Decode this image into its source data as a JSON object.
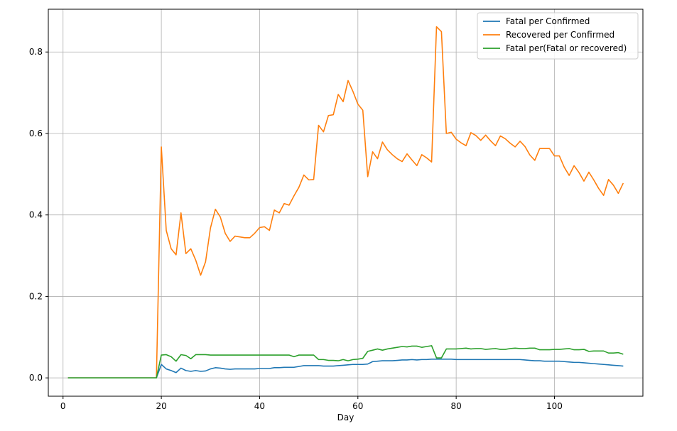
{
  "chart_data": {
    "type": "line",
    "title": "",
    "xlabel": "Day",
    "ylabel": "",
    "xlim": [
      -3,
      118
    ],
    "ylim": [
      -0.045,
      0.905
    ],
    "xticks": [
      0,
      20,
      40,
      60,
      80,
      100
    ],
    "yticks": [
      0.0,
      0.2,
      0.4,
      0.6,
      0.8
    ],
    "xtick_labels": [
      "0",
      "20",
      "40",
      "60",
      "80",
      "100"
    ],
    "ytick_labels": [
      "0.0",
      "0.2",
      "0.4",
      "0.6",
      "0.8"
    ],
    "grid": true,
    "legend_position": "top-right",
    "x": [
      1,
      2,
      3,
      4,
      5,
      6,
      7,
      8,
      9,
      10,
      11,
      12,
      13,
      14,
      15,
      16,
      17,
      18,
      19,
      20,
      21,
      22,
      23,
      24,
      25,
      26,
      27,
      28,
      29,
      30,
      31,
      32,
      33,
      34,
      35,
      36,
      37,
      38,
      39,
      40,
      41,
      42,
      43,
      44,
      45,
      46,
      47,
      48,
      49,
      50,
      51,
      52,
      53,
      54,
      55,
      56,
      57,
      58,
      59,
      60,
      61,
      62,
      63,
      64,
      65,
      66,
      67,
      68,
      69,
      70,
      71,
      72,
      73,
      74,
      75,
      76,
      77,
      78,
      79,
      80,
      81,
      82,
      83,
      84,
      85,
      86,
      87,
      88,
      89,
      90,
      91,
      92,
      93,
      94,
      95,
      96,
      97,
      98,
      99,
      100,
      101,
      102,
      103,
      104,
      105,
      106,
      107,
      108,
      109,
      110,
      111,
      112,
      113,
      114
    ],
    "series": [
      {
        "name": "Fatal per Confirmed",
        "color": "#1f77b4",
        "values": [
          0,
          0,
          0,
          0,
          0,
          0,
          0,
          0,
          0,
          0,
          0,
          0,
          0,
          0,
          0,
          0,
          0,
          0,
          0,
          0.033,
          0.022,
          0.018,
          0.013,
          0.024,
          0.018,
          0.016,
          0.018,
          0.016,
          0.017,
          0.022,
          0.025,
          0.024,
          0.022,
          0.021,
          0.022,
          0.022,
          0.022,
          0.022,
          0.022,
          0.023,
          0.023,
          0.023,
          0.025,
          0.025,
          0.026,
          0.026,
          0.026,
          0.028,
          0.03,
          0.03,
          0.03,
          0.03,
          0.029,
          0.029,
          0.029,
          0.03,
          0.031,
          0.032,
          0.033,
          0.033,
          0.033,
          0.034,
          0.04,
          0.041,
          0.042,
          0.042,
          0.042,
          0.043,
          0.044,
          0.044,
          0.045,
          0.044,
          0.045,
          0.045,
          0.046,
          0.046,
          0.046,
          0.046,
          0.046,
          0.045,
          0.045,
          0.045,
          0.045,
          0.045,
          0.045,
          0.045,
          0.045,
          0.045,
          0.045,
          0.045,
          0.045,
          0.045,
          0.045,
          0.044,
          0.043,
          0.042,
          0.042,
          0.041,
          0.041,
          0.041,
          0.041,
          0.04,
          0.039,
          0.038,
          0.038,
          0.037,
          0.036,
          0.035,
          0.034,
          0.033,
          0.032,
          0.031,
          0.03,
          0.029
        ]
      },
      {
        "name": "Recovered per Confirmed",
        "color": "#ff7f0e",
        "values": [
          0,
          0,
          0,
          0,
          0,
          0,
          0,
          0,
          0,
          0,
          0,
          0,
          0,
          0,
          0,
          0,
          0,
          0,
          0,
          0.567,
          0.362,
          0.317,
          0.302,
          0.405,
          0.305,
          0.317,
          0.289,
          0.252,
          0.285,
          0.368,
          0.414,
          0.395,
          0.355,
          0.335,
          0.348,
          0.346,
          0.344,
          0.344,
          0.355,
          0.369,
          0.371,
          0.362,
          0.412,
          0.405,
          0.428,
          0.424,
          0.447,
          0.468,
          0.498,
          0.486,
          0.487,
          0.62,
          0.604,
          0.644,
          0.646,
          0.696,
          0.678,
          0.73,
          0.703,
          0.672,
          0.657,
          0.494,
          0.555,
          0.538,
          0.579,
          0.56,
          0.548,
          0.538,
          0.531,
          0.55,
          0.535,
          0.521,
          0.548,
          0.54,
          0.53,
          0.862,
          0.85,
          0.6,
          0.603,
          0.586,
          0.577,
          0.57,
          0.602,
          0.595,
          0.583,
          0.596,
          0.582,
          0.57,
          0.594,
          0.587,
          0.576,
          0.567,
          0.581,
          0.568,
          0.547,
          0.534,
          0.563,
          0.563,
          0.563,
          0.545,
          0.545,
          0.517,
          0.497,
          0.521,
          0.504,
          0.483,
          0.505,
          0.486,
          0.465,
          0.448,
          0.487,
          0.473,
          0.453,
          0.478
        ]
      },
      {
        "name": "Fatal per(Fatal or recovered)",
        "color": "#2ca02c",
        "values": [
          0,
          0,
          0,
          0,
          0,
          0,
          0,
          0,
          0,
          0,
          0,
          0,
          0,
          0,
          0,
          0,
          0,
          0,
          0,
          0.056,
          0.057,
          0.052,
          0.041,
          0.057,
          0.055,
          0.047,
          0.057,
          0.057,
          0.057,
          0.056,
          0.056,
          0.056,
          0.056,
          0.056,
          0.056,
          0.056,
          0.056,
          0.056,
          0.056,
          0.056,
          0.056,
          0.056,
          0.056,
          0.056,
          0.056,
          0.056,
          0.052,
          0.056,
          0.056,
          0.056,
          0.056,
          0.045,
          0.045,
          0.043,
          0.043,
          0.042,
          0.045,
          0.042,
          0.045,
          0.046,
          0.048,
          0.065,
          0.068,
          0.071,
          0.068,
          0.071,
          0.073,
          0.075,
          0.077,
          0.076,
          0.078,
          0.078,
          0.075,
          0.077,
          0.079,
          0.049,
          0.049,
          0.071,
          0.071,
          0.071,
          0.072,
          0.073,
          0.071,
          0.072,
          0.072,
          0.07,
          0.071,
          0.072,
          0.07,
          0.07,
          0.072,
          0.073,
          0.072,
          0.072,
          0.073,
          0.073,
          0.069,
          0.069,
          0.069,
          0.07,
          0.07,
          0.071,
          0.072,
          0.069,
          0.069,
          0.07,
          0.065,
          0.066,
          0.066,
          0.066,
          0.061,
          0.061,
          0.062,
          0.058
        ]
      }
    ]
  }
}
